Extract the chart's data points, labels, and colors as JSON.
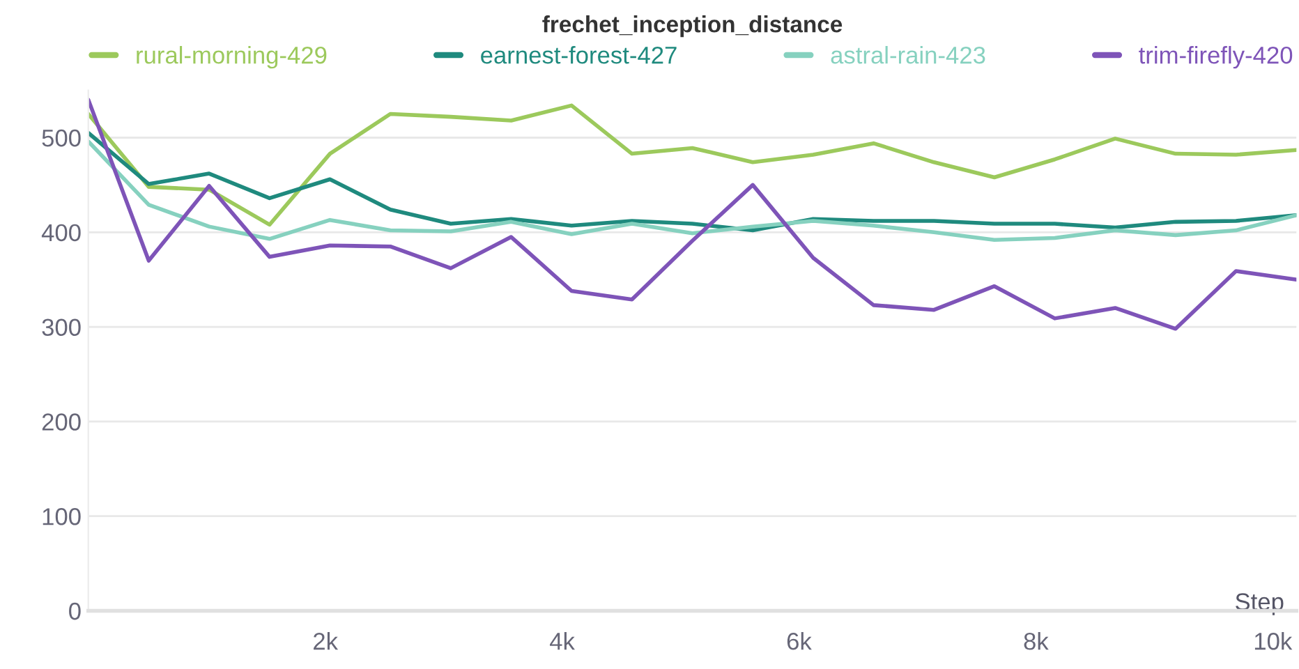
{
  "chart_data": {
    "type": "line",
    "title": "frechet_inception_distance",
    "xlabel": "Step",
    "x": [
      0,
      510,
      1020,
      1530,
      2040,
      2550,
      3060,
      3570,
      4080,
      4590,
      5100,
      5610,
      6120,
      6630,
      7140,
      7650,
      8160,
      8670,
      9180,
      9690,
      10200
    ],
    "series": [
      {
        "name": "rural-morning-429",
        "color": "#9cc95c",
        "values": [
          525,
          448,
          445,
          408,
          483,
          525,
          522,
          518,
          534,
          483,
          489,
          474,
          482,
          494,
          474,
          458,
          477,
          499,
          483,
          482,
          487
        ]
      },
      {
        "name": "earnest-forest-427",
        "color": "#1f8a7e",
        "values": [
          505,
          451,
          462,
          436,
          456,
          424,
          409,
          414,
          407,
          412,
          409,
          402,
          414,
          412,
          412,
          409,
          409,
          405,
          411,
          412,
          418
        ]
      },
      {
        "name": "astral-rain-423",
        "color": "#86d1bf",
        "values": [
          496,
          429,
          406,
          393,
          413,
          402,
          401,
          411,
          398,
          409,
          399,
          406,
          412,
          407,
          400,
          392,
          394,
          402,
          397,
          402,
          418
        ]
      },
      {
        "name": "trim-firefly-420",
        "color": "#7e54b8",
        "values": [
          540,
          370,
          449,
          374,
          386,
          385,
          362,
          395,
          338,
          329,
          391,
          450,
          373,
          323,
          318,
          343,
          309,
          320,
          298,
          359,
          350
        ]
      }
    ],
    "xlim": [
      0,
      10200
    ],
    "ylim": [
      0,
      550
    ],
    "xticks": [
      {
        "value": 2000,
        "label": "2k"
      },
      {
        "value": 4000,
        "label": "4k"
      },
      {
        "value": 6000,
        "label": "6k"
      },
      {
        "value": 8000,
        "label": "8k"
      },
      {
        "value": 10000,
        "label": "10k"
      }
    ],
    "yticks": [
      0,
      100,
      200,
      300,
      400,
      500
    ],
    "grid": "y",
    "legend": "top"
  }
}
